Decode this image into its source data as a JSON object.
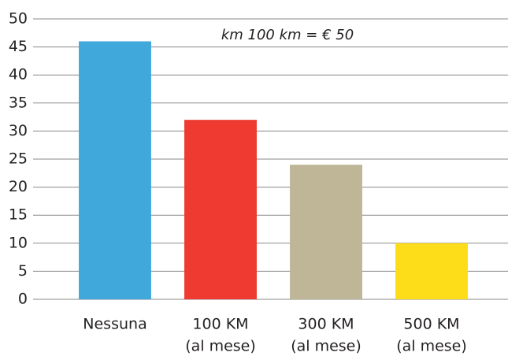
{
  "chart_data": {
    "type": "bar",
    "annotation": "km 100 km = € 50",
    "categories": [
      [
        "Nessuna"
      ],
      [
        "100 KM",
        "(al mese)"
      ],
      [
        "300 KM",
        "(al mese)"
      ],
      [
        "500 KM",
        "(al mese)"
      ]
    ],
    "values": [
      46,
      32,
      24,
      10
    ],
    "colors": [
      "#41a8dc",
      "#ee3a31",
      "#bfb698",
      "#fddd1a"
    ],
    "ylim": [
      0,
      50
    ],
    "yticks": [
      0,
      5,
      10,
      15,
      20,
      25,
      30,
      35,
      40,
      45,
      50
    ],
    "grid": true
  }
}
